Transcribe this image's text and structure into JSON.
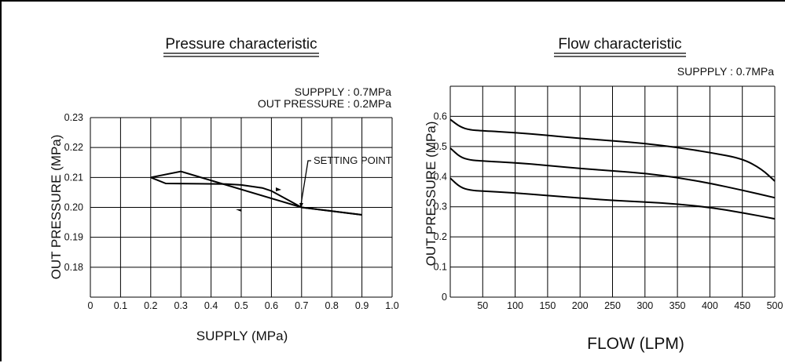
{
  "chart_data": [
    {
      "type": "line",
      "title": "Pressure characteristic",
      "notes": [
        "SUPPPLY : 0.7MPa",
        "OUT PRESSURE : 0.2MPa"
      ],
      "xlabel": "SUPPLY (MPa)",
      "ylabel": "OUT PRESSURE (MPa)",
      "xlim": [
        0,
        1.0
      ],
      "ylim": [
        0.17,
        0.23
      ],
      "x_ticks": [
        "0",
        "0.1",
        "0.2",
        "0.3",
        "0.4",
        "0.5",
        "0.6",
        "0.7",
        "0.8",
        "0.9",
        "1.0"
      ],
      "y_ticks": [
        "0.23",
        "0.22",
        "0.21",
        "0.20",
        "0.19",
        "0.18"
      ],
      "grid": true,
      "annotation": "SETTING POINT",
      "series": [
        {
          "x": [
            0.2,
            0.3,
            0.7,
            0.9
          ],
          "y": [
            0.21,
            0.212,
            0.2,
            0.1975
          ]
        },
        {
          "x": [
            0.9,
            0.7,
            0.6,
            0.57,
            0.5,
            0.45,
            0.25,
            0.2
          ],
          "y": [
            0.1975,
            0.2,
            0.2055,
            0.2065,
            0.2075,
            0.2078,
            0.208,
            0.21
          ]
        }
      ]
    },
    {
      "type": "line",
      "title": "Flow characteristic",
      "notes": [
        "SUPPPLY : 0.7MPa"
      ],
      "xlabel": "FLOW (LPM)",
      "ylabel": "OUT PRESSURE (MPa)",
      "xlim": [
        0,
        500
      ],
      "ylim": [
        0,
        0.7
      ],
      "x_ticks": [
        "50",
        "100",
        "150",
        "200",
        "250",
        "300",
        "350",
        "400",
        "450",
        "500"
      ],
      "y_ticks": [
        "0.6",
        "0.5",
        "0.4",
        "0.3",
        "0.2",
        "0.1",
        "0"
      ],
      "grid": true,
      "series": [
        {
          "x": [
            0,
            15,
            30,
            50,
            100,
            150,
            200,
            250,
            300,
            350,
            400,
            450,
            480,
            500
          ],
          "y": [
            0.59,
            0.565,
            0.555,
            0.552,
            0.546,
            0.537,
            0.527,
            0.519,
            0.51,
            0.497,
            0.48,
            0.46,
            0.425,
            0.385
          ]
        },
        {
          "x": [
            0,
            15,
            30,
            50,
            100,
            150,
            200,
            250,
            300,
            350,
            400,
            450,
            500
          ],
          "y": [
            0.495,
            0.465,
            0.455,
            0.452,
            0.446,
            0.437,
            0.427,
            0.419,
            0.411,
            0.397,
            0.378,
            0.355,
            0.33
          ]
        },
        {
          "x": [
            0,
            15,
            30,
            50,
            100,
            150,
            200,
            250,
            300,
            350,
            400,
            450,
            500
          ],
          "y": [
            0.395,
            0.365,
            0.355,
            0.352,
            0.346,
            0.337,
            0.329,
            0.321,
            0.316,
            0.309,
            0.298,
            0.28,
            0.26
          ]
        }
      ]
    }
  ]
}
